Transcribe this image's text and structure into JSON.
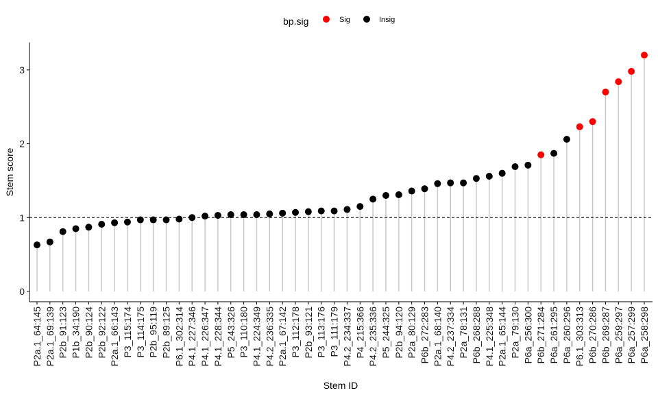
{
  "chart_data": {
    "type": "scatter",
    "xlabel": "Stem ID",
    "ylabel": "Stem score",
    "ylim": [
      -0.1,
      3.4
    ],
    "yticks": [
      0,
      1,
      2,
      3
    ],
    "reference_line": 1,
    "grid": false,
    "legend": {
      "title": "bp.sig",
      "placement": "top",
      "entries": [
        {
          "label": "Sig",
          "color": "#FF0000"
        },
        {
          "label": "Insig",
          "color": "#000000"
        }
      ]
    },
    "categories": [
      "P2a.1_64:145",
      "P2a.1_69:139",
      "P2b_91:123",
      "P1b_34:190",
      "P2b_90:124",
      "P2b_92:122",
      "P2a.1_66:143",
      "P3_115:174",
      "P3_114:175",
      "P2b_95:119",
      "P2b_89:125",
      "P6.1_302:314",
      "P4.1_227:346",
      "P4.1_226:347",
      "P4.1_228:344",
      "P5_243:326",
      "P3_110:180",
      "P4.1_224:349",
      "P4.2_236:335",
      "P2a.1_67:142",
      "P3_112:178",
      "P2b_93:121",
      "P3_113:176",
      "P3_111:179",
      "P4.2_234:337",
      "P4_215:366",
      "P4.2_235:336",
      "P5_244:325",
      "P2b_94:120",
      "P2a_80:129",
      "P6b_272:283",
      "P2a.1_68:140",
      "P4.2_237:334",
      "P2a_78:131",
      "P6b_268:288",
      "P4.1_225:348",
      "P2a.1_65:144",
      "P2a_79:130",
      "P6a_256:300",
      "P6b_271:284",
      "P6a_261:295",
      "P6a_260:296",
      "P6.1_303:313",
      "P6b_270:286",
      "P6b_269:287",
      "P6a_259:297",
      "P6a_257:299",
      "P6a_258:298"
    ],
    "values": [
      0.63,
      0.67,
      0.81,
      0.85,
      0.87,
      0.91,
      0.93,
      0.94,
      0.97,
      0.97,
      0.97,
      0.98,
      1.0,
      1.02,
      1.03,
      1.04,
      1.04,
      1.04,
      1.05,
      1.06,
      1.07,
      1.08,
      1.09,
      1.09,
      1.11,
      1.15,
      1.25,
      1.3,
      1.31,
      1.36,
      1.39,
      1.46,
      1.47,
      1.47,
      1.53,
      1.56,
      1.6,
      1.69,
      1.71,
      1.85,
      1.87,
      2.06,
      2.23,
      2.3,
      2.7,
      2.84,
      2.98,
      3.2
    ],
    "sig": [
      "Insig",
      "Insig",
      "Insig",
      "Insig",
      "Insig",
      "Insig",
      "Insig",
      "Insig",
      "Insig",
      "Insig",
      "Insig",
      "Insig",
      "Insig",
      "Insig",
      "Insig",
      "Insig",
      "Insig",
      "Insig",
      "Insig",
      "Insig",
      "Insig",
      "Insig",
      "Insig",
      "Insig",
      "Insig",
      "Insig",
      "Insig",
      "Insig",
      "Insig",
      "Insig",
      "Insig",
      "Insig",
      "Insig",
      "Insig",
      "Insig",
      "Insig",
      "Insig",
      "Insig",
      "Insig",
      "Sig",
      "Insig",
      "Insig",
      "Sig",
      "Sig",
      "Sig",
      "Sig",
      "Sig",
      "Sig"
    ],
    "colors": {
      "Sig": "#FF0000",
      "Insig": "#000000",
      "stem": "#C8C8C8",
      "axis": "#000000"
    }
  }
}
